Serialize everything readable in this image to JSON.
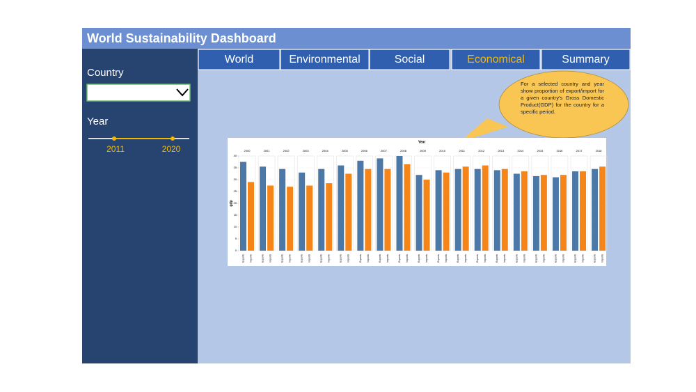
{
  "header": {
    "title": "World Sustainability Dashboard"
  },
  "tabs": [
    "World",
    "Environmental",
    "Social",
    "Economical",
    "Summary"
  ],
  "active_tab": 3,
  "sidebar": {
    "country_label": "Country",
    "year_label": "Year",
    "year_range": [
      2011,
      2020
    ]
  },
  "callout": "For a selected country and year show proportion of export/import for a given country's Gross Domestic Product(GDP) for the country for a specific period.",
  "chart_data": {
    "type": "grouped-bar",
    "title": "Year",
    "y_label": "gdp",
    "categories": [
      "2000",
      "2001",
      "2002",
      "2003",
      "2004",
      "2005",
      "2006",
      "2007",
      "2008",
      "2009",
      "2010",
      "2011",
      "2012",
      "2013",
      "2014",
      "2015",
      "2016",
      "2017",
      "2018"
    ],
    "series": [
      {
        "name": "Exports",
        "color": "#4c78a8",
        "values": [
          37.5,
          35.5,
          34.5,
          33,
          34.5,
          36,
          38,
          39,
          40,
          32,
          34,
          34.5,
          34.5,
          34,
          32.5,
          31.5,
          31,
          33.5,
          34.5
        ]
      },
      {
        "name": "Imports",
        "color": "#f58518",
        "values": [
          29,
          27.5,
          27,
          27.5,
          28.5,
          32.5,
          34.5,
          34.5,
          36.5,
          30,
          33,
          35.5,
          36,
          34.5,
          33.5,
          32,
          32,
          33.5,
          35.5
        ]
      }
    ],
    "ylim": [
      0,
      40
    ],
    "yticks": [
      0,
      5,
      10,
      15,
      20,
      25,
      30,
      35,
      40
    ],
    "grid": true
  }
}
